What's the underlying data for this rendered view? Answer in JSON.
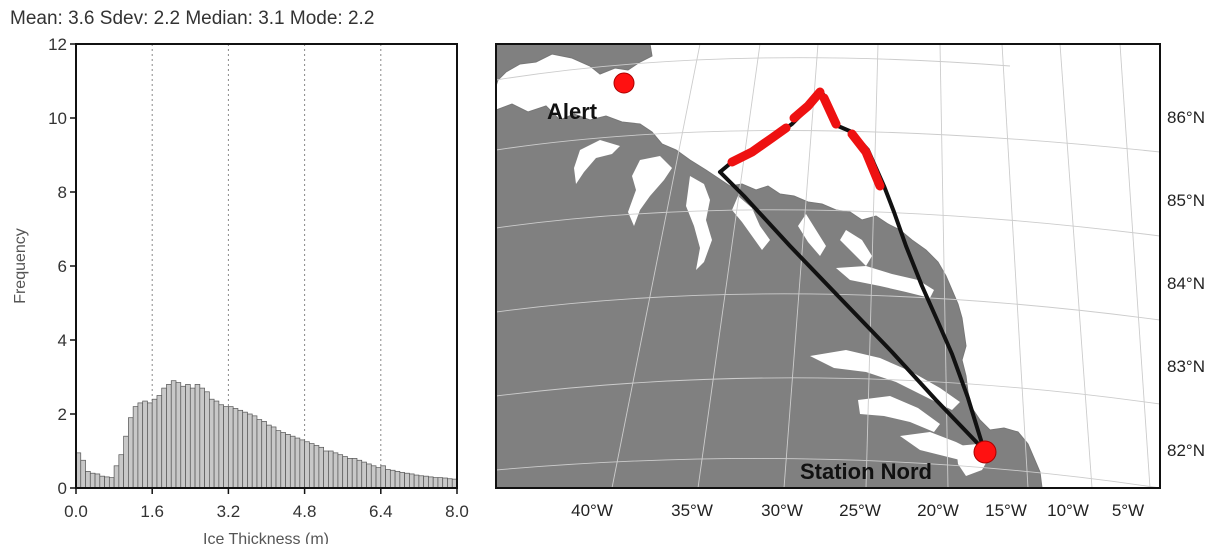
{
  "stats_line": "Mean: 3.6 Sdev: 2.2 Median: 3.1 Mode: 2.2",
  "chart_data": [
    {
      "type": "bar",
      "title": "Mean: 3.6 Sdev: 2.2 Median: 3.1 Mode: 2.2",
      "xlabel": "Ice Thickness (m)",
      "ylabel": "Frequency",
      "xlim": [
        0,
        8
      ],
      "ylim": [
        0,
        12
      ],
      "xticks": [
        "0.0",
        "1.6",
        "3.2",
        "4.8",
        "6.4",
        "8.0"
      ],
      "yticks": [
        "0",
        "2",
        "4",
        "6",
        "8",
        "10",
        "12"
      ],
      "grid": "vertical dotted",
      "bin_width": 0.1,
      "x": [
        0.0,
        0.1,
        0.2,
        0.3,
        0.4,
        0.5,
        0.6,
        0.7,
        0.8,
        0.9,
        1.0,
        1.1,
        1.2,
        1.3,
        1.4,
        1.5,
        1.6,
        1.7,
        1.8,
        1.9,
        2.0,
        2.1,
        2.2,
        2.3,
        2.4,
        2.5,
        2.6,
        2.7,
        2.8,
        2.9,
        3.0,
        3.1,
        3.2,
        3.3,
        3.4,
        3.5,
        3.6,
        3.7,
        3.8,
        3.9,
        4.0,
        4.1,
        4.2,
        4.3,
        4.4,
        4.5,
        4.6,
        4.7,
        4.8,
        4.9,
        5.0,
        5.1,
        5.2,
        5.3,
        5.4,
        5.5,
        5.6,
        5.7,
        5.8,
        5.9,
        6.0,
        6.1,
        6.2,
        6.3,
        6.4,
        6.5,
        6.6,
        6.7,
        6.8,
        6.9,
        7.0,
        7.1,
        7.2,
        7.3,
        7.4,
        7.5,
        7.6,
        7.7,
        7.8,
        7.9
      ],
      "values": [
        0.95,
        0.75,
        0.45,
        0.4,
        0.38,
        0.32,
        0.3,
        0.28,
        0.6,
        0.9,
        1.4,
        1.9,
        2.2,
        2.3,
        2.35,
        2.3,
        2.4,
        2.5,
        2.7,
        2.8,
        2.9,
        2.85,
        2.75,
        2.8,
        2.7,
        2.8,
        2.7,
        2.6,
        2.4,
        2.35,
        2.25,
        2.2,
        2.2,
        2.15,
        2.1,
        2.05,
        2.0,
        1.95,
        1.85,
        1.8,
        1.7,
        1.65,
        1.55,
        1.5,
        1.45,
        1.4,
        1.35,
        1.3,
        1.25,
        1.2,
        1.15,
        1.1,
        1.0,
        1.0,
        0.95,
        0.9,
        0.85,
        0.8,
        0.8,
        0.75,
        0.7,
        0.65,
        0.6,
        0.55,
        0.6,
        0.5,
        0.48,
        0.45,
        0.42,
        0.4,
        0.38,
        0.35,
        0.33,
        0.32,
        0.3,
        0.28,
        0.28,
        0.27,
        0.25,
        0.24
      ]
    },
    {
      "type": "map",
      "lat_labels": [
        "86°N",
        "85°N",
        "84°N",
        "83°N",
        "82°N"
      ],
      "lon_labels": [
        "40°W",
        "35°W",
        "30°W",
        "25°W",
        "20°W",
        "15°W",
        "10°W",
        "5°W"
      ],
      "places": [
        {
          "name": "Alert",
          "marker_color": "#ff0000"
        },
        {
          "name": "Station Nord",
          "marker_color": "#ff0000"
        }
      ],
      "track_color": "#000000",
      "highlight_color": "#ee1111",
      "land_color": "#808080",
      "ice_color": "#ffffff"
    }
  ]
}
